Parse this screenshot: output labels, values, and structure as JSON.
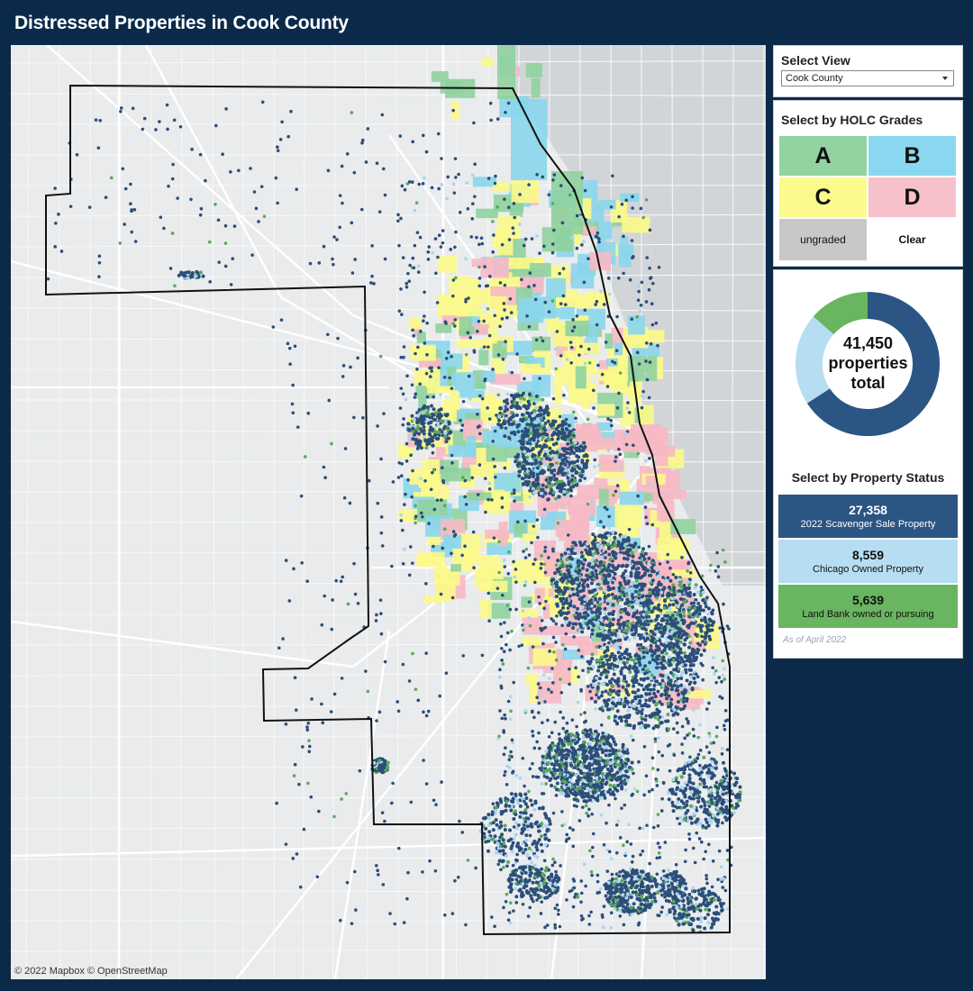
{
  "header": {
    "title": "Distressed Properties in Cook County"
  },
  "map": {
    "attribution": "© 2022 Mapbox © OpenStreetMap",
    "colors": {
      "land": "#e9ebec",
      "water": "#d2d5d8",
      "roads": "#ffffff",
      "boundary": "#111111",
      "holc_a": "#8fd19e",
      "holc_b": "#8ad6ec",
      "holc_c": "#fbf98a",
      "holc_d": "#f6b9c4",
      "dot_scavenger": "#2b4e7a",
      "dot_chicago": "#a9d4ee",
      "dot_landbank": "#5aa85a"
    }
  },
  "select_view": {
    "label": "Select View",
    "value": "Cook County"
  },
  "holc": {
    "label": "Select by HOLC Grades",
    "grades": [
      {
        "label": "A",
        "color": "#93d3a2"
      },
      {
        "label": "B",
        "color": "#8ad8ef"
      },
      {
        "label": "C",
        "color": "#fbfb8d"
      },
      {
        "label": "D",
        "color": "#f7c1cb"
      }
    ],
    "ungraded_label": "ungraded",
    "clear_label": "Clear"
  },
  "summary": {
    "total_count": "41,450",
    "total_line2": "properties",
    "total_line3": "total",
    "donut_segments": [
      {
        "name": "2022 Scavenger Sale Property",
        "value": 27358,
        "color": "#2b5583"
      },
      {
        "name": "Chicago Owned Property",
        "value": 8559,
        "color": "#b7ddf2"
      },
      {
        "name": "Land Bank owned or pursuing",
        "value": 5639,
        "color": "#6ab55f"
      }
    ]
  },
  "status": {
    "label": "Select by Property Status",
    "items": [
      {
        "count": "27,358",
        "label": "2022 Scavenger Sale Property",
        "bg": "#2b5583",
        "fg": "#ffffff"
      },
      {
        "count": "8,559",
        "label": "Chicago Owned Property",
        "bg": "#b7ddf2",
        "fg": "#111111"
      },
      {
        "count": "5,639",
        "label": "Land Bank owned or pursuing",
        "bg": "#6ab55f",
        "fg": "#111111"
      }
    ],
    "as_of": "As of April 2022"
  }
}
